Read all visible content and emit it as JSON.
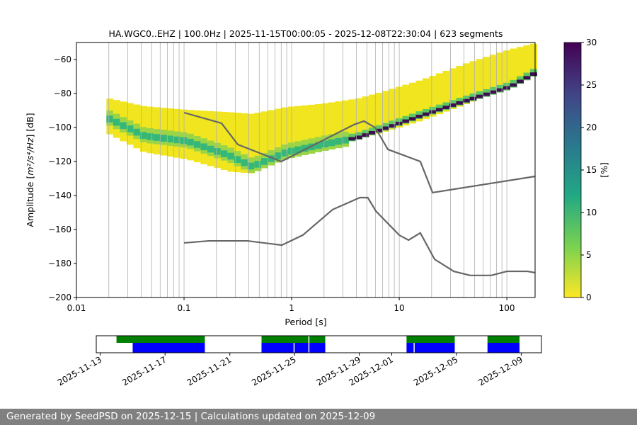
{
  "chart_data": {
    "type": "heatmap",
    "title": "HA.WGC0..EHZ | 100.0Hz | 2025-11-15T00:00:05 - 2025-12-08T22:30:04 | 623 segments",
    "xlabel": "Period [s]",
    "ylabel_main": "Amplitude [",
    "ylabel_unit": "m²/s⁴/Hz",
    "ylabel_tail": "] [dB]",
    "xscale": "log",
    "xlim": [
      0.01,
      183
    ],
    "ylim": [
      -200,
      -50
    ],
    "x_ticks": [
      {
        "v": 0.01,
        "label": "0.01"
      },
      {
        "v": 0.1,
        "label": "0.1"
      },
      {
        "v": 1,
        "label": "1"
      },
      {
        "v": 10,
        "label": "10"
      },
      {
        "v": 100,
        "label": "100"
      }
    ],
    "y_ticks": [
      {
        "v": -60,
        "label": "−60"
      },
      {
        "v": -80,
        "label": "−80"
      },
      {
        "v": -100,
        "label": "−100"
      },
      {
        "v": -120,
        "label": "−120"
      },
      {
        "v": -140,
        "label": "−140"
      },
      {
        "v": -160,
        "label": "−160"
      },
      {
        "v": -180,
        "label": "−180"
      },
      {
        "v": -200,
        "label": "−200"
      }
    ],
    "grid": "vertical minor lines",
    "colorbar": {
      "label": "[%]",
      "range": [
        0,
        30
      ],
      "ticks": [
        {
          "v": 0,
          "label": "0"
        },
        {
          "v": 5,
          "label": "5"
        },
        {
          "v": 10,
          "label": "10"
        },
        {
          "v": 15,
          "label": "15"
        },
        {
          "v": 20,
          "label": "20"
        },
        {
          "v": 25,
          "label": "25"
        },
        {
          "v": 30,
          "label": "30"
        }
      ],
      "colormap": "viridis_r"
    },
    "psd_distribution": {
      "period": [
        0.019,
        0.04,
        0.1,
        0.25,
        0.4,
        0.83,
        1.8,
        3.8,
        6.5,
        15,
        40,
        100,
        183
      ],
      "lower_db": [
        -104,
        -114.6,
        -118.8,
        -126,
        -127,
        -117,
        -111,
        -107,
        -103,
        -96,
        -86,
        -76,
        -68
      ],
      "upper_db": [
        -83,
        -87.5,
        -89.6,
        -91,
        -92,
        -88,
        -86,
        -83,
        -79,
        -72,
        -62,
        -54,
        -50
      ],
      "mode_db": [
        -95,
        -105,
        -108,
        -116.7,
        -123,
        -114.6,
        -110,
        -106,
        -101,
        -93,
        -84,
        -76,
        -67
      ]
    },
    "series": [
      {
        "name": "NHNM",
        "color": "#666666",
        "x": [
          0.1,
          0.223,
          0.316,
          0.8,
          3.8,
          4.7,
          5.97,
          7.85,
          15.7,
          20.4,
          183
        ],
        "y": [
          -91.25,
          -97.5,
          -110,
          -120,
          -98.3,
          -96.25,
          -100,
          -112.9,
          -120,
          -138.3,
          -128.75
        ]
      },
      {
        "name": "NLNM",
        "color": "#666666",
        "x": [
          0.1,
          0.17,
          0.39,
          0.81,
          1.27,
          2.4,
          4.3,
          5.1,
          6.07,
          10,
          12.2,
          15.7,
          21.3,
          32.1,
          45.5,
          71.6,
          100,
          155,
          183
        ],
        "y": [
          -167.9,
          -166.7,
          -166.7,
          -169.2,
          -163.3,
          -148.3,
          -141.25,
          -141.25,
          -149.2,
          -163.3,
          -166.25,
          -162,
          -177.5,
          -184.6,
          -187,
          -187,
          -184.6,
          -184.6,
          -185.4
        ]
      }
    ],
    "timeline": {
      "start": "2025-11-12T18:00",
      "end": "2025-12-10T06:00",
      "ticks": [
        "2025-11-13",
        "2025-11-17",
        "2025-11-21",
        "2025-11-25",
        "2025-11-29",
        "2025-12-01",
        "2025-12-05",
        "2025-12-09"
      ],
      "green_color": "#008000",
      "blue_color": "#0000ff",
      "green_ranges": [
        [
          "2025-11-14T00:00",
          "2025-11-19T11:30"
        ],
        [
          "2025-11-22T23:00",
          "2025-11-25T21:00"
        ],
        [
          "2025-11-25T22:00",
          "2025-11-26T22:00"
        ],
        [
          "2025-12-01T22:00",
          "2025-12-04T22:00"
        ],
        [
          "2025-12-06T22:00",
          "2025-12-08T22:00"
        ]
      ],
      "blue_ranges": [
        [
          "2025-11-15T00:00",
          "2025-11-19T11:30"
        ],
        [
          "2025-11-22T23:00",
          "2025-11-24T23:00"
        ],
        [
          "2025-11-25T00:00",
          "2025-11-25T21:00"
        ],
        [
          "2025-11-25T22:00",
          "2025-11-26T22:00"
        ],
        [
          "2025-12-01T22:00",
          "2025-12-02T09:00"
        ],
        [
          "2025-12-02T10:00",
          "2025-12-04T22:00"
        ],
        [
          "2025-12-06T22:00",
          "2025-12-08T22:00"
        ]
      ]
    }
  },
  "footer": {
    "text": "Generated by SeedPSD on 2025-12-15 | Calculations updated on 2025-12-09"
  }
}
